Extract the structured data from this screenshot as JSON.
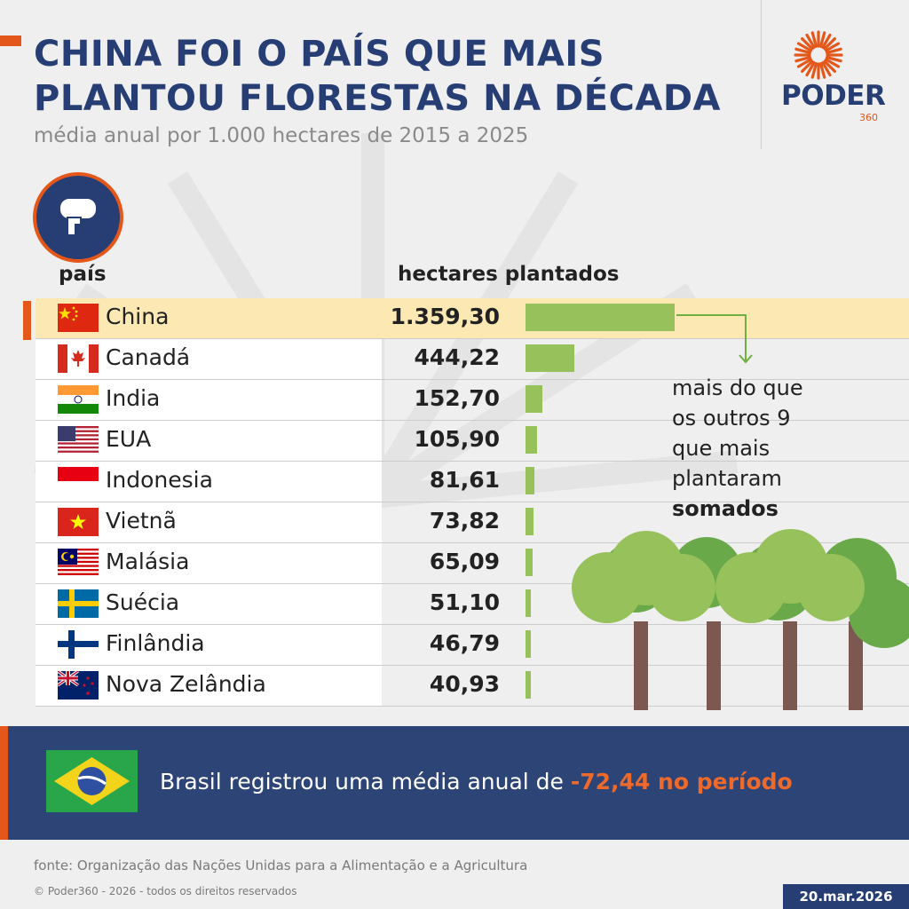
{
  "header": {
    "title_line1": "CHINA FOI O PAÍS QUE MAIS",
    "title_line2": "PLANTOU FLORESTAS NA DÉCADA",
    "subtitle": "média anual por 1.000 hectares de 2015 a 2025"
  },
  "logo": {
    "word": "PODER",
    "number": "360",
    "icon": "sun-rays-icon"
  },
  "columns": {
    "country": "país",
    "hectares": "hectares plantados"
  },
  "colors": {
    "title": "#273e74",
    "accent": "#e4571a",
    "bar": "#97c15a",
    "highlight_row": "#fbe8b3",
    "footer_band": "#2d4476"
  },
  "chart_data": {
    "type": "bar",
    "orientation": "horizontal",
    "categories": [
      "China",
      "Canadá",
      "India",
      "EUA",
      "Indonesia",
      "Vietnã",
      "Malásia",
      "Suécia",
      "Finlândia",
      "Nova Zelândia"
    ],
    "values": [
      1359.3,
      444.22,
      152.7,
      105.9,
      81.61,
      73.82,
      65.09,
      51.1,
      46.79,
      40.93
    ],
    "value_labels": [
      "1.359,30",
      "444,22",
      "152,70",
      "105,90",
      "81,61",
      "73,82",
      "65,09",
      "51,10",
      "46,79",
      "40,93"
    ],
    "highlight": "China",
    "xlim": [
      0,
      1359.3
    ]
  },
  "annotation": {
    "line1": "mais do que",
    "line2": "os outros 9",
    "line3": "que mais",
    "line4": "plantaram",
    "line5_bold": "somados"
  },
  "footer": {
    "brazil_text": "Brasil registrou uma média anual de",
    "brazil_value": "-72,44 no período",
    "source": "fonte: Organização das Nações Unidas para a Alimentação e a Agricultura",
    "copyright": "© Poder360 - 2026 - todos os direitos reservados",
    "date": "20.mar.2026"
  }
}
